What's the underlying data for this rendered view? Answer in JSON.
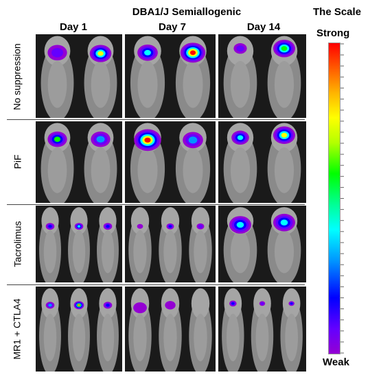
{
  "title": "DBA1/J Semiallogenic",
  "days": [
    "Day 1",
    "Day 7",
    "Day 14"
  ],
  "rows": [
    "No suppression",
    "PiF",
    "Tacrolimus",
    "MR1 + CTLA4"
  ],
  "scale": {
    "title": "The Scale",
    "high_label": "Strong",
    "low_label": "Weak"
  }
}
